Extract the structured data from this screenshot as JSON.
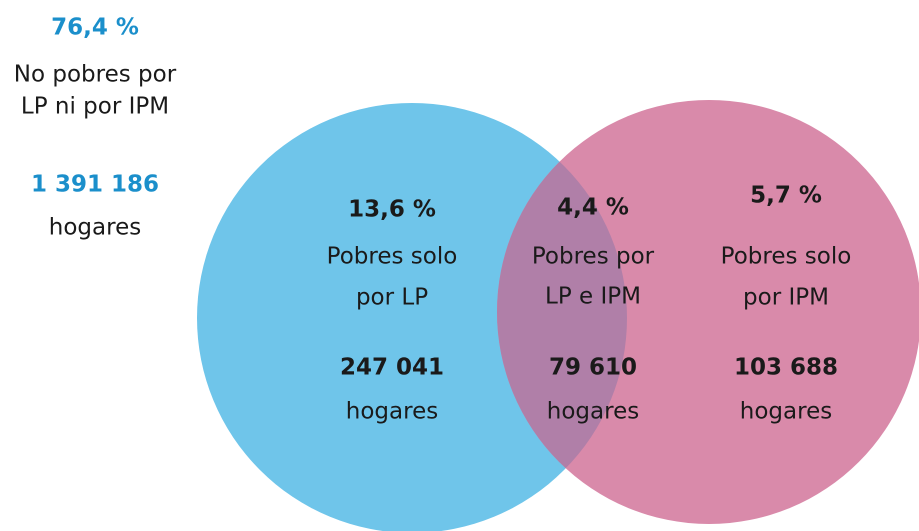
{
  "outside": {
    "percent": "76,4 %",
    "label": [
      "No pobres por",
      "LP ni por IPM"
    ],
    "count": "1 391 186",
    "unit": "hogares"
  },
  "regions": [
    {
      "percent": "13,6 %",
      "label": [
        "Pobres solo",
        "por LP"
      ],
      "count": "247 041",
      "unit": "hogares"
    },
    {
      "percent": "4,4 %",
      "label": [
        "Pobres por",
        "LP e IPM"
      ],
      "count": "79 610",
      "unit": "hogares"
    },
    {
      "percent": "5,7 %",
      "label": [
        "Pobres solo",
        "por IPM"
      ],
      "count": "103 688",
      "unit": "hogares"
    }
  ]
}
